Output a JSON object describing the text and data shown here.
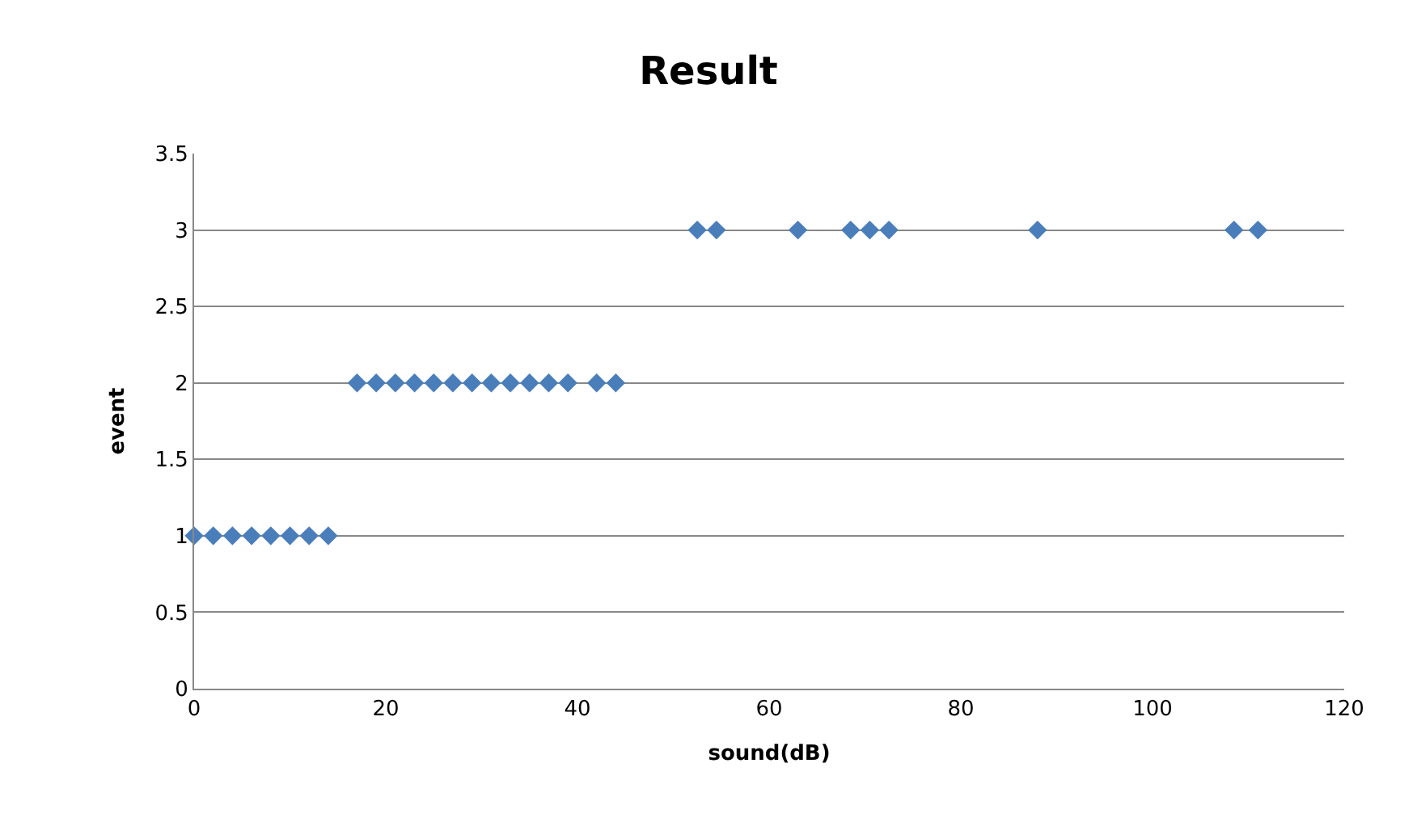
{
  "chart_data": {
    "type": "scatter",
    "title": "Result",
    "xlabel": "sound(dB)",
    "ylabel": "event",
    "x": [
      0,
      2,
      4,
      6,
      8,
      10,
      12,
      14,
      17,
      19,
      21,
      23,
      25,
      27,
      29,
      31,
      33,
      35,
      37,
      39,
      42,
      44,
      52.5,
      54.5,
      63,
      68.5,
      70.5,
      72.5,
      88,
      108.5,
      111
    ],
    "values": [
      1,
      1,
      1,
      1,
      1,
      1,
      1,
      1,
      2,
      2,
      2,
      2,
      2,
      2,
      2,
      2,
      2,
      2,
      2,
      2,
      2,
      2,
      3,
      3,
      3,
      3,
      3,
      3,
      3,
      3,
      3
    ],
    "color": "#4a7ebb",
    "marker": "diamond",
    "xlim": [
      0,
      120
    ],
    "xticks": [
      0,
      20,
      40,
      60,
      80,
      100,
      120
    ],
    "ylim": [
      0,
      3.5
    ],
    "yticks": [
      0,
      0.5,
      1,
      1.5,
      2,
      2.5,
      3,
      3.5
    ],
    "grid": "y",
    "legend": false
  }
}
